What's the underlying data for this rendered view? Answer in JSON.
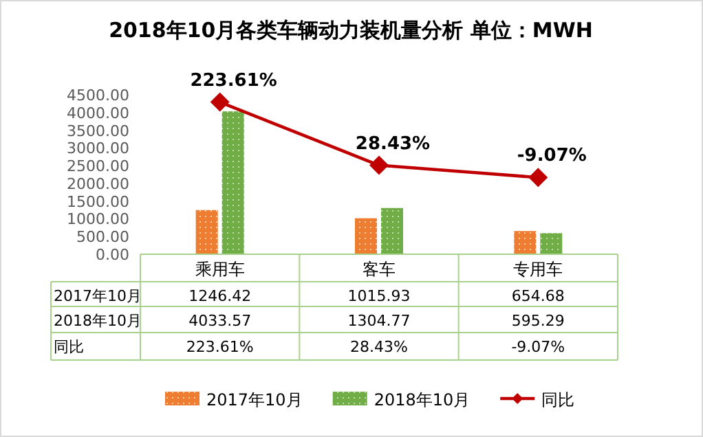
{
  "chart_data": {
    "type": "bar",
    "title": "2018年10月各类车辆动力装机量分析 单位：MWH",
    "categories": [
      "乘用车",
      "客车",
      "专用车"
    ],
    "series": [
      {
        "name": "2017年10月",
        "color": "#ed7d31",
        "values": [
          1246.42,
          1015.93,
          654.68
        ]
      },
      {
        "name": "2018年10月",
        "color": "#70ad47",
        "values": [
          4033.57,
          1304.77,
          595.29
        ]
      },
      {
        "name": "同比",
        "type": "line",
        "axis": "y2",
        "color": "#c00000",
        "values": [
          223.61,
          28.43,
          -9.07
        ],
        "value_labels": [
          "223.61%",
          "28.43%",
          "-9.07%"
        ]
      }
    ],
    "ylim": [
      0,
      4500
    ],
    "yticks": [
      {
        "value": 0,
        "label": "0.00"
      },
      {
        "value": 500,
        "label": "500.00"
      },
      {
        "value": 1000,
        "label": "1000.00"
      },
      {
        "value": 1500,
        "label": "1500.00"
      },
      {
        "value": 2000,
        "label": "2000.00"
      },
      {
        "value": 2500,
        "label": "2500.00"
      },
      {
        "value": 3000,
        "label": "3000.00"
      },
      {
        "value": 3500,
        "label": "3500.00"
      },
      {
        "value": 4000,
        "label": "4000.00"
      },
      {
        "value": 4500,
        "label": "4500.00"
      }
    ],
    "marker": "diamond",
    "data_labels": true,
    "legend": "bottom"
  }
}
